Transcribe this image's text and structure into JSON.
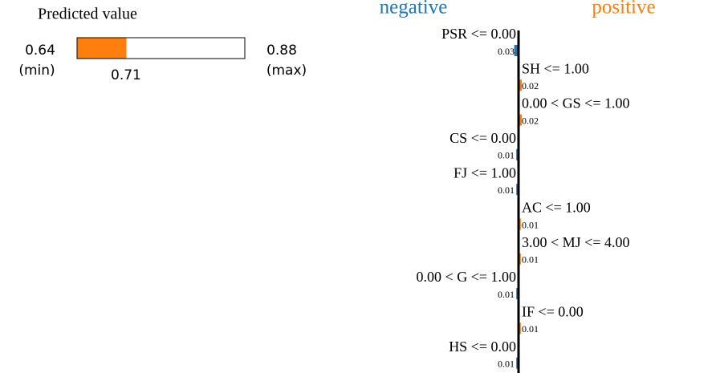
{
  "chart_data": [
    {
      "type": "gauge",
      "title": "Predicted value",
      "min": 0.64,
      "max": 0.88,
      "value": 0.71,
      "min_label": "(min)",
      "max_label": "(max)",
      "color": "#ff7f0e"
    },
    {
      "type": "diverging-bar",
      "negative_label": "negative",
      "positive_label": "positive",
      "categories": [
        "PSR <= 0.00",
        "SH <= 1.00",
        "0.00 < GS <= 1.00",
        "CS <= 0.00",
        "FJ <= 1.00",
        "AC <= 1.00",
        "3.00 < MJ <= 4.00",
        "0.00 < G <= 1.00",
        "IF <= 0.00",
        "HS <= 0.00"
      ],
      "values": [
        -0.03,
        0.02,
        0.02,
        -0.01,
        -0.01,
        0.01,
        0.01,
        -0.01,
        0.01,
        -0.01
      ],
      "value_labels": [
        "0.03",
        "0.02",
        "0.02",
        "0.01",
        "0.01",
        "0.01",
        "0.01",
        "0.01",
        "0.01",
        "0.01"
      ],
      "negative_color": "#1f77b4",
      "positive_color": "#ff7f0e"
    }
  ]
}
